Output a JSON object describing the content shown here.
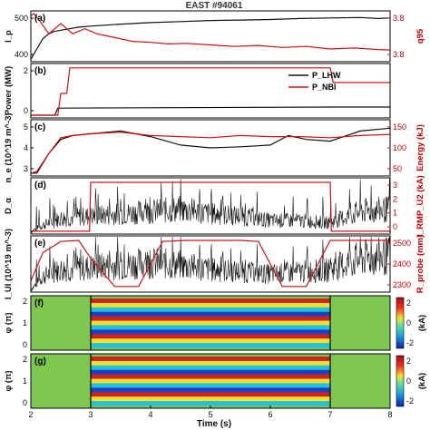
{
  "figure": {
    "title": "EAST #94061",
    "xlabel": "Time (s)",
    "xticks": [
      "2",
      "3",
      "4",
      "5",
      "6",
      "7",
      "8"
    ],
    "xlim": [
      2,
      8
    ]
  },
  "colors": {
    "black": "#111111",
    "red": "#d01010",
    "green": "#7ec850"
  },
  "chart_data": [
    {
      "panel": "(a)",
      "type": "line",
      "ylabel_left": "I_p",
      "ylabel_right": "q95",
      "left_ticks": [
        "400",
        "500"
      ],
      "right_ticks": [
        "3.8",
        "3.8"
      ],
      "series": [
        {
          "axis": "left",
          "color": "black",
          "x": [
            2.0,
            2.1,
            2.2,
            2.3,
            2.4,
            2.6,
            2.8,
            3.0,
            3.5,
            4.0,
            4.5,
            5.0,
            5.5,
            6.0,
            6.5,
            7.0,
            7.5,
            7.8,
            8.0
          ],
          "y": [
            0.05,
            0.25,
            0.45,
            0.55,
            0.6,
            0.64,
            0.68,
            0.7,
            0.74,
            0.77,
            0.79,
            0.81,
            0.82,
            0.83,
            0.85,
            0.86,
            0.87,
            0.85,
            0.86
          ]
        },
        {
          "axis": "right",
          "color": "red",
          "x": [
            2.0,
            2.05,
            2.15,
            2.3,
            2.5,
            2.7,
            2.9,
            3.1,
            3.3,
            3.5,
            3.7,
            4.0,
            4.3,
            4.6,
            5.0,
            5.4,
            5.8,
            6.2,
            6.6,
            7.0,
            7.4,
            7.8,
            8.0
          ],
          "y": [
            0.9,
            0.95,
            0.8,
            0.55,
            0.75,
            0.55,
            0.65,
            0.55,
            0.5,
            0.45,
            0.4,
            0.38,
            0.35,
            0.36,
            0.33,
            0.3,
            0.32,
            0.28,
            0.3,
            0.25,
            0.27,
            0.24,
            0.23
          ]
        }
      ]
    },
    {
      "panel": "(b)",
      "type": "line",
      "ylabel_left": "Power (MW)",
      "left_ticks": [
        "0",
        "2"
      ],
      "legend": [
        "P_LHW",
        "P_NBI"
      ],
      "series": [
        {
          "name": "P_LHW",
          "axis": "left",
          "color": "black",
          "x": [
            2.0,
            2.4,
            2.45,
            7.0,
            7.8,
            8.0
          ],
          "y": [
            0.05,
            0.05,
            0.18,
            0.2,
            0.2,
            0.2
          ]
        },
        {
          "name": "P_NBI",
          "axis": "left",
          "color": "red",
          "x": [
            2.0,
            2.45,
            2.5,
            2.6,
            2.65,
            7.0,
            7.05,
            7.2,
            7.25,
            8.0
          ],
          "y": [
            0.05,
            0.05,
            0.45,
            0.45,
            0.92,
            0.92,
            0.65,
            0.65,
            0.65,
            0.65
          ]
        }
      ]
    },
    {
      "panel": "(c)",
      "type": "line",
      "ylabel_left": "n_e (10^19 m^-3)",
      "ylabel_right": "Energy (kJ)",
      "left_ticks": [
        "3",
        "4",
        "5"
      ],
      "right_ticks": [
        "50",
        "100",
        "150"
      ],
      "series": [
        {
          "axis": "left",
          "color": "black",
          "x": [
            2.0,
            2.1,
            2.3,
            2.5,
            2.7,
            3.0,
            3.5,
            4.0,
            4.5,
            5.0,
            5.5,
            6.0,
            6.3,
            6.6,
            7.0,
            7.5,
            8.0
          ],
          "y": [
            0.05,
            0.05,
            0.4,
            0.65,
            0.72,
            0.75,
            0.8,
            0.7,
            0.55,
            0.5,
            0.52,
            0.55,
            0.72,
            0.65,
            0.62,
            0.8,
            0.85
          ]
        },
        {
          "axis": "right",
          "color": "red",
          "x": [
            2.0,
            2.1,
            2.3,
            2.5,
            2.7,
            3.0,
            3.5,
            4.0,
            4.5,
            5.0,
            5.5,
            6.0,
            6.5,
            7.0,
            7.5,
            8.0
          ],
          "y": [
            0.05,
            0.08,
            0.4,
            0.68,
            0.72,
            0.75,
            0.78,
            0.72,
            0.7,
            0.68,
            0.72,
            0.7,
            0.7,
            0.68,
            0.72,
            0.74
          ]
        }
      ]
    },
    {
      "panel": "(d)",
      "type": "line",
      "ylabel_left": "D_α",
      "ylabel_right": "I_RMP_U2 (kA)",
      "right_ticks": [
        "0",
        "1",
        "2",
        "3"
      ],
      "series": [
        {
          "axis": "left",
          "color": "black",
          "style": "spiky",
          "x": [
            2.0,
            2.2,
            2.5,
            3.0,
            3.5,
            4.0,
            4.5,
            5.0,
            5.5,
            6.0,
            6.5,
            7.0,
            7.5,
            8.0
          ],
          "y": [
            0.05,
            0.2,
            0.35,
            0.4,
            0.45,
            0.5,
            0.55,
            0.45,
            0.4,
            0.3,
            0.3,
            0.25,
            0.5,
            0.55
          ]
        },
        {
          "axis": "right",
          "color": "red",
          "x": [
            2.0,
            2.98,
            3.0,
            7.0,
            7.02,
            8.0
          ],
          "y": [
            0.05,
            0.05,
            0.92,
            0.92,
            0.05,
            0.05
          ]
        }
      ]
    },
    {
      "panel": "(e)",
      "type": "line",
      "ylabel_left": "I_UI (10^19 m^-3)",
      "ylabel_right": "R_probe (mm)",
      "right_ticks": [
        "2300",
        "2400",
        "2500"
      ],
      "series": [
        {
          "axis": "left",
          "color": "black",
          "style": "spiky",
          "x": [
            2.0,
            2.2,
            2.5,
            3.0,
            3.5,
            4.0,
            4.5,
            5.0,
            5.5,
            6.0,
            6.5,
            7.0,
            7.5,
            8.0
          ],
          "y": [
            0.05,
            0.35,
            0.5,
            0.55,
            0.6,
            0.65,
            0.6,
            0.5,
            0.45,
            0.4,
            0.45,
            0.5,
            0.75,
            0.8
          ]
        },
        {
          "axis": "right",
          "color": "red",
          "x": [
            2.0,
            2.2,
            2.5,
            2.8,
            3.0,
            3.4,
            3.8,
            4.2,
            4.6,
            5.0,
            5.5,
            5.8,
            6.2,
            6.6,
            7.0,
            7.4,
            7.8,
            8.0
          ],
          "y": [
            0.2,
            0.7,
            0.9,
            0.92,
            0.6,
            0.1,
            0.1,
            0.9,
            0.92,
            0.92,
            0.92,
            0.9,
            0.1,
            0.1,
            0.92,
            0.92,
            0.92,
            0.92
          ]
        }
      ]
    },
    {
      "panel": "(f)",
      "type": "heatmap",
      "ylabel": "φ (π)",
      "yticks": [
        "2",
        "1",
        "0"
      ],
      "colorbar_label": "(kA)",
      "colorbar_ticks": [
        "2",
        "0",
        "-2"
      ],
      "active_window": [
        3,
        7
      ],
      "stripes": 11,
      "stripe_colors": [
        "#d02020",
        "#f0e030",
        "#20c0e0",
        "#2040c0"
      ]
    },
    {
      "panel": "(g)",
      "type": "heatmap",
      "ylabel": "φ (π)",
      "yticks": [
        "2",
        "1",
        "0"
      ],
      "colorbar_label": "(kA)",
      "colorbar_ticks": [
        "2",
        "0",
        "-2"
      ],
      "active_window": [
        3,
        7
      ],
      "stripes": 11,
      "stripe_colors": [
        "#d02020",
        "#f0e030",
        "#20c0e0",
        "#2040c0"
      ]
    }
  ]
}
